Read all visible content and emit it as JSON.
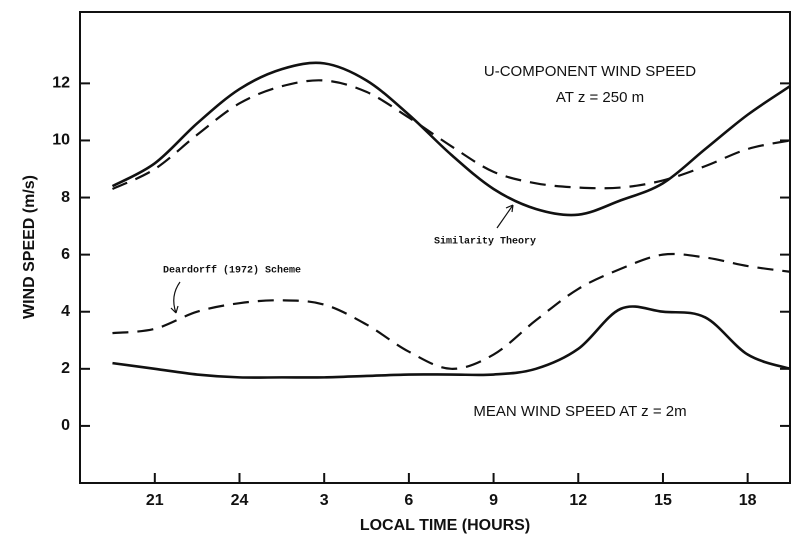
{
  "chart_data": {
    "type": "line",
    "xlabel": "LOCAL TIME (HOURS)",
    "ylabel": "WIND SPEED (m/s)",
    "annotations": [
      "U-COMPONENT WIND SPEED",
      "AT z = 250 m",
      "MEAN WIND SPEED AT z = 2m",
      "Similarity Theory",
      "Deardorff (1972) Scheme"
    ],
    "x": [
      19.5,
      21,
      22.5,
      24,
      25.5,
      27,
      28.5,
      30,
      31.5,
      33,
      34.5,
      36,
      37.5,
      39,
      40.5,
      42,
      43.5
    ],
    "series": [
      {
        "color": "#111",
        "dash": false,
        "values": [
          8.4,
          9.2,
          10.6,
          11.8,
          12.5,
          12.7,
          12.1,
          10.9,
          9.5,
          8.3,
          7.6,
          7.4,
          7.9,
          8.5,
          9.7,
          10.9,
          11.9
        ]
      },
      {
        "color": "#111",
        "dash": true,
        "values": [
          8.3,
          9.0,
          10.2,
          11.3,
          11.9,
          12.1,
          11.7,
          10.8,
          9.8,
          8.9,
          8.5,
          8.35,
          8.35,
          8.6,
          9.1,
          9.7,
          10.0
        ]
      },
      {
        "color": "#111",
        "dash": false,
        "values": [
          2.2,
          2.0,
          1.8,
          1.7,
          1.7,
          1.7,
          1.75,
          1.8,
          1.8,
          1.8,
          2.0,
          2.7,
          4.1,
          4.0,
          3.8,
          2.5,
          2.0
        ]
      },
      {
        "color": "#111",
        "dash": true,
        "values": [
          3.25,
          3.4,
          4.0,
          4.3,
          4.4,
          4.25,
          3.55,
          2.6,
          2.0,
          2.5,
          3.7,
          4.8,
          5.5,
          6.0,
          5.9,
          5.6,
          5.4
        ]
      }
    ],
    "xlim": [
      18.35,
      43.5
    ],
    "ylim": [
      -2,
      14.5
    ],
    "xticks": [
      {
        "value": 21,
        "label": "21"
      },
      {
        "value": 24,
        "label": "24"
      },
      {
        "value": 27,
        "label": "3"
      },
      {
        "value": 30,
        "label": "6"
      },
      {
        "value": 33,
        "label": "9"
      },
      {
        "value": 36,
        "label": "12"
      },
      {
        "value": 39,
        "label": "15"
      },
      {
        "value": 42,
        "label": "18"
      }
    ],
    "yticks": [
      0,
      2,
      4,
      6,
      8,
      10,
      12
    ]
  }
}
